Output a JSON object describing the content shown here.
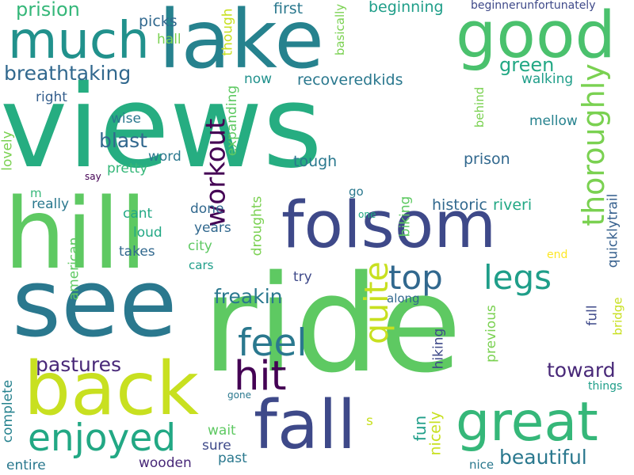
{
  "words": [
    {
      "text": "views",
      "color": "#26ad81"
    },
    {
      "text": "ride",
      "color": "#5ec962"
    },
    {
      "text": "hill",
      "color": "#5ec962"
    },
    {
      "text": "see",
      "color": "#2a788e"
    },
    {
      "text": "lake",
      "color": "#26828e"
    },
    {
      "text": "folsom",
      "color": "#3e4989"
    },
    {
      "text": "fall",
      "color": "#3e4989"
    },
    {
      "text": "back",
      "color": "#c8e020"
    },
    {
      "text": "great",
      "color": "#35b779"
    },
    {
      "text": "good",
      "color": "#4ac16d"
    },
    {
      "text": "much",
      "color": "#21918c"
    },
    {
      "text": "enjoyed",
      "color": "#22a884"
    },
    {
      "text": "thoroughly",
      "color": "#7ad151"
    },
    {
      "text": "top",
      "color": "#31688e"
    },
    {
      "text": "legs",
      "color": "#1f9e89"
    },
    {
      "text": "hit",
      "color": "#440154"
    },
    {
      "text": "feel",
      "color": "#2a788e"
    },
    {
      "text": "quite",
      "color": "#c8e020"
    },
    {
      "text": "workout",
      "color": "#440154"
    },
    {
      "text": "breathtaking",
      "color": "#31688e"
    },
    {
      "text": "prision",
      "color": "#35b779"
    },
    {
      "text": "pastures",
      "color": "#482878"
    },
    {
      "text": "freakin",
      "color": "#2a788e"
    },
    {
      "text": "beautiful",
      "color": "#2a788e"
    },
    {
      "text": "toward",
      "color": "#482878"
    },
    {
      "text": "blast",
      "color": "#31688e"
    },
    {
      "text": "green",
      "color": "#22a884"
    },
    {
      "text": "fun",
      "color": "#1f9e89"
    },
    {
      "text": "nicely",
      "color": "#c8e020"
    },
    {
      "text": "quicklytrail",
      "color": "#355f8d"
    },
    {
      "text": "beginning",
      "color": "#1f9e89"
    },
    {
      "text": "recoveredkids",
      "color": "#2a788e"
    },
    {
      "text": "historic",
      "color": "#31688e"
    },
    {
      "text": "riveri",
      "color": "#22a884"
    },
    {
      "text": "prison",
      "color": "#31688e"
    },
    {
      "text": "tough",
      "color": "#2a788e"
    },
    {
      "text": "first",
      "color": "#2a788e"
    },
    {
      "text": "picks",
      "color": "#31688e"
    },
    {
      "text": "hall",
      "color": "#7ad151"
    },
    {
      "text": "now",
      "color": "#21918c"
    },
    {
      "text": "walking",
      "color": "#1f9e89"
    },
    {
      "text": "mellow",
      "color": "#26828e"
    },
    {
      "text": "wise",
      "color": "#2a788e"
    },
    {
      "text": "word",
      "color": "#2a788e"
    },
    {
      "text": "pretty",
      "color": "#35b779"
    },
    {
      "text": "right",
      "color": "#355f8d"
    },
    {
      "text": "lovely",
      "color": "#7ad151"
    },
    {
      "text": "really",
      "color": "#2a788e"
    },
    {
      "text": "cant",
      "color": "#22a884"
    },
    {
      "text": "loud",
      "color": "#22a884"
    },
    {
      "text": "takes",
      "color": "#31688e"
    },
    {
      "text": "done",
      "color": "#31688e"
    },
    {
      "text": "years",
      "color": "#31688e"
    },
    {
      "text": "city",
      "color": "#5ec962"
    },
    {
      "text": "cars",
      "color": "#1f9e89"
    },
    {
      "text": "try",
      "color": "#3e4989"
    },
    {
      "text": "along",
      "color": "#31688e"
    },
    {
      "text": "go",
      "color": "#2a788e"
    },
    {
      "text": "biking",
      "color": "#5ec962"
    },
    {
      "text": "droughts",
      "color": "#7ad151"
    },
    {
      "text": "expanding",
      "color": "#5ec962"
    },
    {
      "text": "though",
      "color": "#c8e020"
    },
    {
      "text": "basically",
      "color": "#7ad151"
    },
    {
      "text": "behind",
      "color": "#7ad151"
    },
    {
      "text": "american",
      "color": "#5ec962"
    },
    {
      "text": "complete",
      "color": "#26828e"
    },
    {
      "text": "entire",
      "color": "#2a788e"
    },
    {
      "text": "wooden",
      "color": "#482878"
    },
    {
      "text": "wait",
      "color": "#5ec962"
    },
    {
      "text": "sure",
      "color": "#3e4989"
    },
    {
      "text": "past",
      "color": "#2a788e"
    },
    {
      "text": "gone",
      "color": "#2a788e"
    },
    {
      "text": "s",
      "color": "#c8e020"
    },
    {
      "text": "hiking",
      "color": "#3e4989"
    },
    {
      "text": "previous",
      "color": "#7ad151"
    },
    {
      "text": "full",
      "color": "#3e4989"
    },
    {
      "text": "bridge",
      "color": "#c8e020"
    },
    {
      "text": "things",
      "color": "#1f9e89"
    },
    {
      "text": "nice",
      "color": "#2a788e"
    },
    {
      "text": "end",
      "color": "#fde725"
    },
    {
      "text": "one",
      "color": "#22a884"
    },
    {
      "text": "say",
      "color": "#440154"
    },
    {
      "text": "m",
      "color": "#35b779"
    },
    {
      "text": "beginnerunfortunately",
      "color": "#3e4989"
    }
  ]
}
